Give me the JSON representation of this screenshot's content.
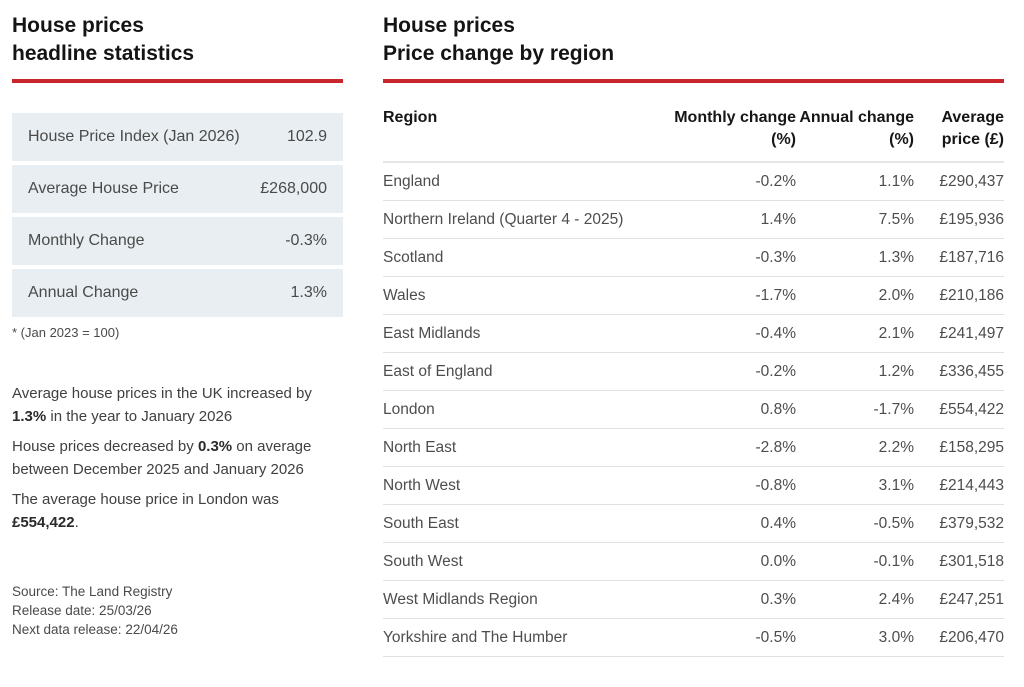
{
  "colors": {
    "accent_red": "#c9252c",
    "stat_row_bg": "#e8eef1"
  },
  "left_panel": {
    "title_line1": "House prices",
    "title_line2": "headline statistics",
    "stats": [
      {
        "label": "House Price Index (Jan 2026)",
        "value": "102.9"
      },
      {
        "label": "Average House Price",
        "value": "£268,000"
      },
      {
        "label": "Monthly Change",
        "value": "-0.3%"
      },
      {
        "label": "Annual Change",
        "value": "1.3%"
      }
    ],
    "footnote": "* (Jan 2023 = 100)",
    "paragraphs": [
      {
        "segments": [
          {
            "text": "Average house prices in the UK increased by ",
            "bold": false
          },
          {
            "text": "1.3%",
            "bold": true
          },
          {
            "text": " in the year to January 2026",
            "bold": false
          }
        ]
      },
      {
        "segments": [
          {
            "text": "House prices decreased by ",
            "bold": false
          },
          {
            "text": "0.3%",
            "bold": true
          },
          {
            "text": " on average between December 2025 and January 2026",
            "bold": false
          }
        ]
      },
      {
        "segments": [
          {
            "text": "The average house price in London was ",
            "bold": false
          },
          {
            "text": "£554,422",
            "bold": true
          },
          {
            "text": ".",
            "bold": false
          }
        ]
      }
    ],
    "source_lines": [
      "Source: The Land Registry",
      "Release date: 25/03/26",
      "Next data release: 22/04/26"
    ]
  },
  "right_panel": {
    "title_line1": "House prices",
    "title_line2": "Price change by region",
    "table": {
      "columns": [
        "Region",
        "Monthly change (%)",
        "Annual change (%)",
        "Average price (£)"
      ],
      "rows": [
        {
          "region": "England",
          "monthly": "-0.2%",
          "annual": "1.1%",
          "price": "£290,437"
        },
        {
          "region": "Northern Ireland (Quarter 4 - 2025)",
          "monthly": "1.4%",
          "annual": "7.5%",
          "price": "£195,936"
        },
        {
          "region": "Scotland",
          "monthly": "-0.3%",
          "annual": "1.3%",
          "price": "£187,716"
        },
        {
          "region": "Wales",
          "monthly": "-1.7%",
          "annual": "2.0%",
          "price": "£210,186"
        },
        {
          "region": "East Midlands",
          "monthly": "-0.4%",
          "annual": "2.1%",
          "price": "£241,497"
        },
        {
          "region": "East of England",
          "monthly": "-0.2%",
          "annual": "1.2%",
          "price": "£336,455"
        },
        {
          "region": "London",
          "monthly": "0.8%",
          "annual": "-1.7%",
          "price": "£554,422"
        },
        {
          "region": "North East",
          "monthly": "-2.8%",
          "annual": "2.2%",
          "price": "£158,295"
        },
        {
          "region": "North West",
          "monthly": "-0.8%",
          "annual": "3.1%",
          "price": "£214,443"
        },
        {
          "region": "South East",
          "monthly": "0.4%",
          "annual": "-0.5%",
          "price": "£379,532"
        },
        {
          "region": "South West",
          "monthly": "0.0%",
          "annual": "-0.1%",
          "price": "£301,518"
        },
        {
          "region": "West Midlands Region",
          "monthly": "0.3%",
          "annual": "2.4%",
          "price": "£247,251"
        },
        {
          "region": "Yorkshire and The Humber",
          "monthly": "-0.5%",
          "annual": "3.0%",
          "price": "£206,470"
        }
      ]
    }
  }
}
